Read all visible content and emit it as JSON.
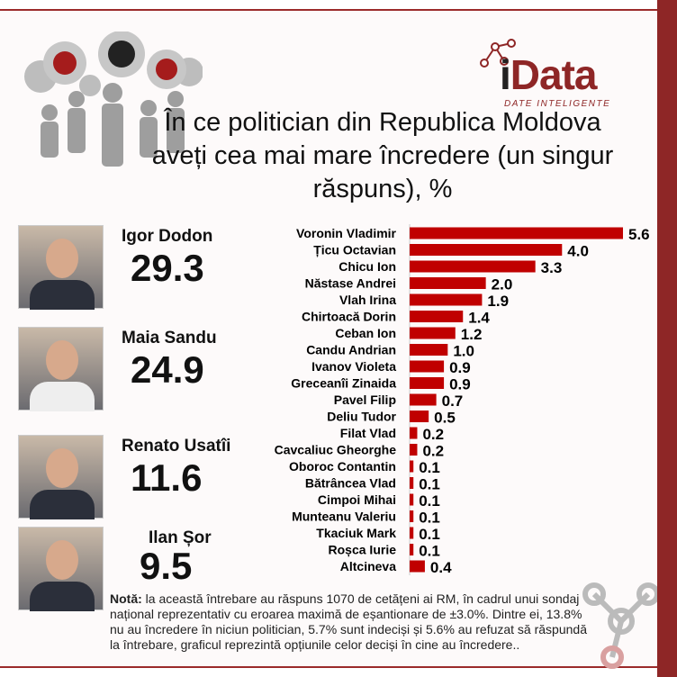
{
  "title": "În ce politician din Republica Moldova aveți cea mai mare încredere (un singur răspuns), %",
  "logo": {
    "brand_i": "i",
    "brand_rest": "Data",
    "tagline": "DATE INTELIGENTE"
  },
  "candidates": [
    {
      "name": "Igor Dodon",
      "value": "29.3"
    },
    {
      "name": "Maia Sandu",
      "value": "24.9"
    },
    {
      "name": "Renato Usatîi",
      "value": "11.6"
    },
    {
      "name": "Ilan Șor",
      "value": "9.5"
    }
  ],
  "chart_data": {
    "type": "bar",
    "orientation": "horizontal",
    "title": "În ce politician din Republica Moldova aveți cea mai mare încredere (un singur răspuns), %",
    "categories": [
      "Voronin Vladimir",
      "Țicu Octavian",
      "Chicu Ion",
      "Năstase Andrei",
      "Vlah Irina",
      "Chirtoacă Dorin",
      "Ceban Ion",
      "Candu Andrian",
      "Ivanov Violeta",
      "Greceanîi Zinaida",
      "Pavel Filip",
      "Deliu Tudor",
      "Filat Vlad",
      "Cavcaliuc Gheorghe",
      "Oboroc Contantin",
      "Bătrâncea Vlad",
      "Cimpoi Mihai",
      "Munteanu Valeriu",
      "Tkaciuk Mark",
      "Roșca Iurie",
      "Altcineva"
    ],
    "values": [
      5.6,
      4.0,
      3.3,
      2.0,
      1.9,
      1.4,
      1.2,
      1.0,
      0.9,
      0.9,
      0.7,
      0.5,
      0.2,
      0.2,
      0.1,
      0.1,
      0.1,
      0.1,
      0.1,
      0.1,
      0.4
    ],
    "labels": [
      "5.6",
      "4.0",
      "3.3",
      "2.0",
      "1.9",
      "1.4",
      "1.2",
      "1.0",
      "0.9",
      "0.9",
      "0.7",
      "0.5",
      "0.2",
      "0.2",
      "0.1",
      "0.1",
      "0.1",
      "0.1",
      "0.1",
      "0.1",
      "0.4"
    ],
    "bar_color": "#c00000",
    "xlim": [
      0,
      5.6
    ]
  },
  "note": {
    "label": "Notă:",
    "text": " la această întrebare au răspuns 1070 de cetățeni ai RM, în cadrul unui sondaj național reprezentativ cu eroarea maximă de eșantionare de ±3.0%. Dintre ei, 13.8% nu au încredere în niciun politician, 5.7% sunt indeciși și 5.6% au refuzat să răspundă la întrebare, graficul reprezintă opțiunile celor deciși în cine au încredere.."
  }
}
